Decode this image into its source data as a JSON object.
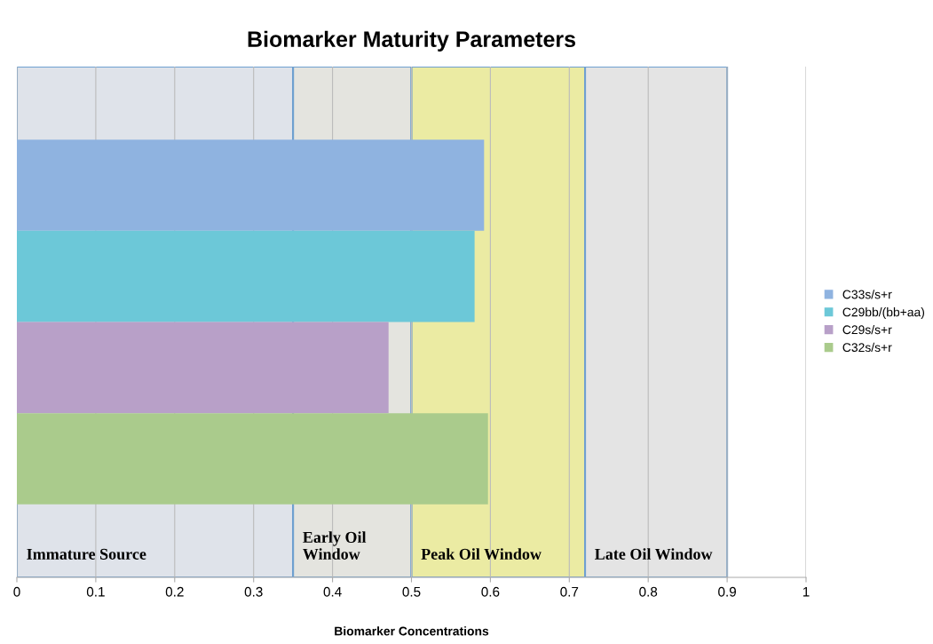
{
  "chart_data": {
    "type": "bar",
    "orientation": "horizontal",
    "title": "Biomarker Maturity Parameters",
    "xlabel": "Biomarker Concentrations",
    "categories": [
      null
    ],
    "series": [
      {
        "name": "C33s/s+r",
        "color": "#8fb3e0",
        "values": [
          0.592
        ]
      },
      {
        "name": "C29bb/(bb+aa)",
        "color": "#6cc8d8",
        "values": [
          0.58
        ]
      },
      {
        "name": "C29s/s+r",
        "color": "#b8a0c8",
        "values": [
          0.471
        ]
      },
      {
        "name": "C32s/s+r",
        "color": "#aacb8c",
        "values": [
          0.597
        ]
      }
    ],
    "xlim": [
      0,
      1
    ],
    "xticks": [
      0,
      0.1,
      0.2,
      0.3,
      0.4,
      0.5,
      0.6,
      0.7,
      0.8,
      0.9,
      1
    ],
    "bands": [
      {
        "axis": "x",
        "from": 0,
        "to": 0.35,
        "label": "Immature Source",
        "color": "#dfe3ea"
      },
      {
        "axis": "x",
        "from": 0.35,
        "to": 0.5,
        "label": "Early Oil\nWindow",
        "color": "#e4e4df"
      },
      {
        "axis": "x",
        "from": 0.5,
        "to": 0.72,
        "label": "Peak Oil Window",
        "color": "#ebeba3"
      },
      {
        "axis": "x",
        "from": 0.72,
        "to": 0.9,
        "label": "Late Oil Window",
        "color": "#e4e4e4"
      }
    ],
    "grid": "x",
    "legend": "right"
  }
}
